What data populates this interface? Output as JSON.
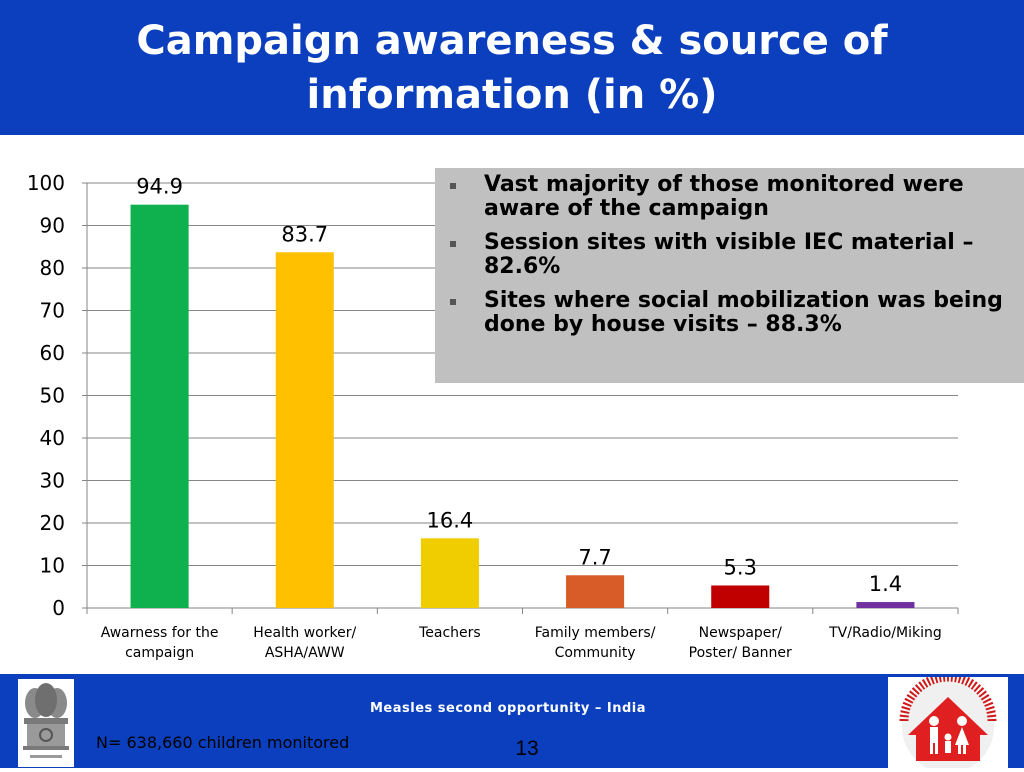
{
  "slide": {
    "title": "Campaign awareness & source of information (in %)",
    "footer_text": "Measles second opportunity – India",
    "footnote": "N= 638,660 children monitored",
    "page_number": "13"
  },
  "notes": [
    "Vast majority of those monitored were aware of the campaign",
    "Session sites with visible IEC material – 82.6%",
    "Sites where social mobilization was being done by house visits – 88.3%"
  ],
  "colors": {
    "header_bg": "#0b3fbd",
    "note_bg": "#c0c0c0"
  },
  "icons": {
    "left": "national-emblem-icon",
    "right": "family-logo-icon"
  },
  "chart_data": {
    "type": "bar",
    "categories": [
      [
        "Awarness for the",
        "campaign"
      ],
      [
        "Health worker/",
        "ASHA/AWW"
      ],
      [
        "Teachers"
      ],
      [
        "Family members/",
        "Community"
      ],
      [
        "Newspaper/",
        "Poster/ Banner"
      ],
      [
        "TV/Radio/Miking"
      ]
    ],
    "values": [
      94.9,
      83.7,
      16.4,
      7.7,
      5.3,
      1.4
    ],
    "value_labels": [
      "94.9",
      "83.7",
      "16.4",
      "7.7",
      "5.3",
      "1.4"
    ],
    "bar_colors": [
      "#0fb04e",
      "#ffc000",
      "#f0cd00",
      "#d85c27",
      "#c00000",
      "#7030a0"
    ],
    "ylim": [
      0,
      100
    ],
    "yticks": [
      0,
      10,
      20,
      30,
      40,
      50,
      60,
      70,
      80,
      90,
      100
    ],
    "grid": true,
    "legend": "none"
  }
}
